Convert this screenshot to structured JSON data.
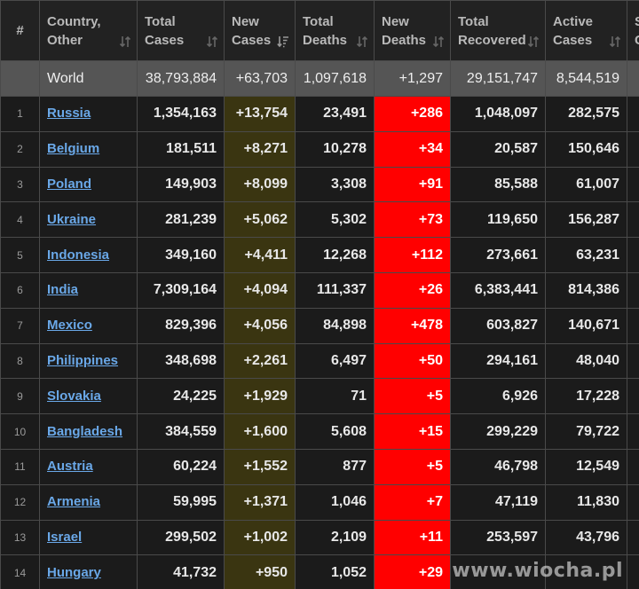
{
  "table": {
    "headers": {
      "num": "#",
      "country": [
        "Country,",
        "Other"
      ],
      "total_cases": [
        "Total",
        "Cases"
      ],
      "new_cases": [
        "New",
        "Cases"
      ],
      "total_deaths": [
        "Total",
        "Deaths"
      ],
      "new_deaths": [
        "New",
        "Deaths"
      ],
      "total_recovered": [
        "Total",
        "Recovered"
      ],
      "active_cases": [
        "Active",
        "Cases"
      ],
      "partial": [
        "S",
        "C"
      ]
    },
    "world": {
      "country": "World",
      "total_cases": "38,793,884",
      "new_cases": "+63,703",
      "total_deaths": "1,097,618",
      "new_deaths": "+1,297",
      "total_recovered": "29,151,747",
      "active_cases": "8,544,519"
    },
    "rows": [
      {
        "idx": "1",
        "country": "Russia",
        "total_cases": "1,354,163",
        "new_cases": "+13,754",
        "total_deaths": "23,491",
        "new_deaths": "+286",
        "total_recovered": "1,048,097",
        "active_cases": "282,575"
      },
      {
        "idx": "2",
        "country": "Belgium",
        "total_cases": "181,511",
        "new_cases": "+8,271",
        "total_deaths": "10,278",
        "new_deaths": "+34",
        "total_recovered": "20,587",
        "active_cases": "150,646"
      },
      {
        "idx": "3",
        "country": "Poland",
        "total_cases": "149,903",
        "new_cases": "+8,099",
        "total_deaths": "3,308",
        "new_deaths": "+91",
        "total_recovered": "85,588",
        "active_cases": "61,007"
      },
      {
        "idx": "4",
        "country": "Ukraine",
        "total_cases": "281,239",
        "new_cases": "+5,062",
        "total_deaths": "5,302",
        "new_deaths": "+73",
        "total_recovered": "119,650",
        "active_cases": "156,287"
      },
      {
        "idx": "5",
        "country": "Indonesia",
        "total_cases": "349,160",
        "new_cases": "+4,411",
        "total_deaths": "12,268",
        "new_deaths": "+112",
        "total_recovered": "273,661",
        "active_cases": "63,231"
      },
      {
        "idx": "6",
        "country": "India",
        "total_cases": "7,309,164",
        "new_cases": "+4,094",
        "total_deaths": "111,337",
        "new_deaths": "+26",
        "total_recovered": "6,383,441",
        "active_cases": "814,386"
      },
      {
        "idx": "7",
        "country": "Mexico",
        "total_cases": "829,396",
        "new_cases": "+4,056",
        "total_deaths": "84,898",
        "new_deaths": "+478",
        "total_recovered": "603,827",
        "active_cases": "140,671"
      },
      {
        "idx": "8",
        "country": "Philippines",
        "total_cases": "348,698",
        "new_cases": "+2,261",
        "total_deaths": "6,497",
        "new_deaths": "+50",
        "total_recovered": "294,161",
        "active_cases": "48,040"
      },
      {
        "idx": "9",
        "country": "Slovakia",
        "total_cases": "24,225",
        "new_cases": "+1,929",
        "total_deaths": "71",
        "new_deaths": "+5",
        "total_recovered": "6,926",
        "active_cases": "17,228"
      },
      {
        "idx": "10",
        "country": "Bangladesh",
        "total_cases": "384,559",
        "new_cases": "+1,600",
        "total_deaths": "5,608",
        "new_deaths": "+15",
        "total_recovered": "299,229",
        "active_cases": "79,722"
      },
      {
        "idx": "11",
        "country": "Austria",
        "total_cases": "60,224",
        "new_cases": "+1,552",
        "total_deaths": "877",
        "new_deaths": "+5",
        "total_recovered": "46,798",
        "active_cases": "12,549"
      },
      {
        "idx": "12",
        "country": "Armenia",
        "total_cases": "59,995",
        "new_cases": "+1,371",
        "total_deaths": "1,046",
        "new_deaths": "+7",
        "total_recovered": "47,119",
        "active_cases": "11,830"
      },
      {
        "idx": "13",
        "country": "Israel",
        "total_cases": "299,502",
        "new_cases": "+1,002",
        "total_deaths": "2,109",
        "new_deaths": "+11",
        "total_recovered": "253,597",
        "active_cases": "43,796"
      },
      {
        "idx": "14",
        "country": "Hungary",
        "total_cases": "41,732",
        "new_cases": "+950",
        "total_deaths": "1,052",
        "new_deaths": "+29",
        "total_recovered": "",
        "active_cases": ""
      }
    ]
  },
  "watermark": "www.wiocha.pl",
  "colors": {
    "background": "#1b1b1b",
    "new_cases_highlight": "#3a3511",
    "new_deaths_highlight": "#ff0000",
    "world_row": "#555555",
    "link": "#6aa8e8"
  },
  "icons": {
    "sort": "sort-arrows-icon",
    "sort_active": "sort-desc-icon"
  }
}
